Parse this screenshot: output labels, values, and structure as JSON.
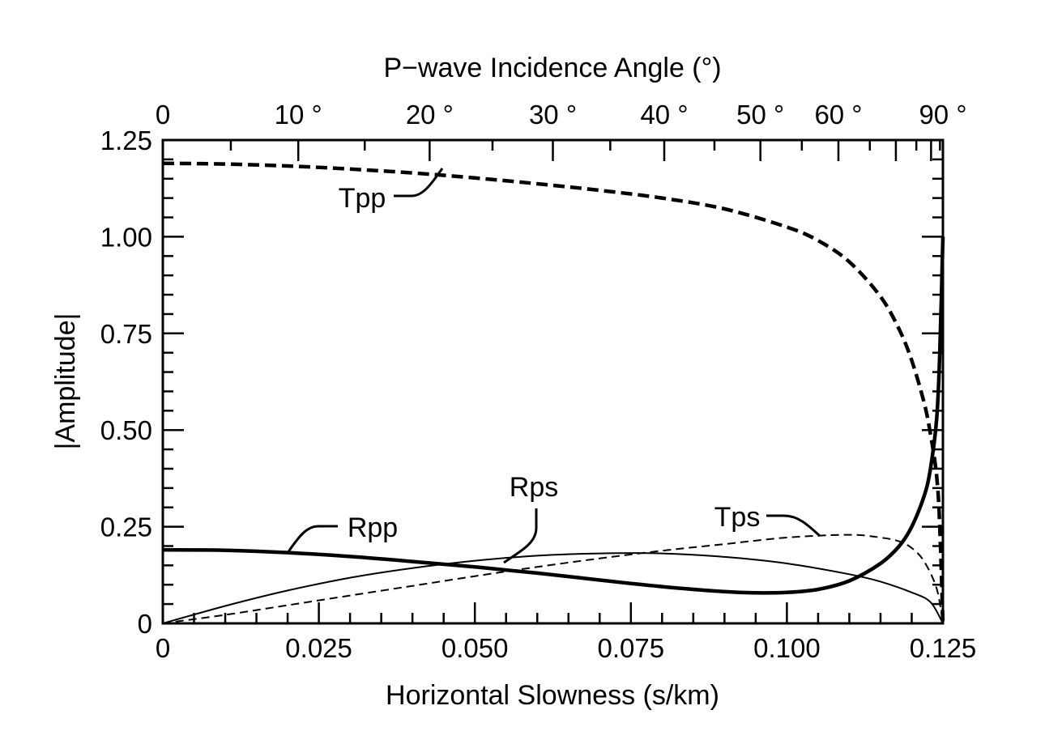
{
  "chart_data": {
    "type": "line",
    "xlabel": "Horizontal Slowness (s/km)",
    "ylabel": "|Amplitude|",
    "top_axis_label": "P−wave Incidence Angle (°)",
    "xlim": [
      0,
      0.125
    ],
    "ylim": [
      0,
      1.25
    ],
    "grid": false,
    "legend": "none",
    "x_ticks": [
      {
        "value": 0,
        "label": "0"
      },
      {
        "value": 0.025,
        "label": "0.025"
      },
      {
        "value": 0.05,
        "label": "0.050"
      },
      {
        "value": 0.075,
        "label": "0.075"
      },
      {
        "value": 0.1,
        "label": "0.100"
      },
      {
        "value": 0.125,
        "label": "0.125"
      }
    ],
    "y_ticks": [
      {
        "value": 0,
        "label": "0"
      },
      {
        "value": 0.25,
        "label": "0.25"
      },
      {
        "value": 0.5,
        "label": "0.50"
      },
      {
        "value": 0.75,
        "label": "0.75"
      },
      {
        "value": 1.0,
        "label": "1.00"
      },
      {
        "value": 1.25,
        "label": "1.25"
      }
    ],
    "top_ticks": [
      {
        "angle": 0,
        "label": "0"
      },
      {
        "angle": 10,
        "label": "10 °"
      },
      {
        "angle": 20,
        "label": "20 °"
      },
      {
        "angle": 30,
        "label": "30 °"
      },
      {
        "angle": 40,
        "label": "40 °"
      },
      {
        "angle": 50,
        "label": "50 °"
      },
      {
        "angle": 60,
        "label": "60 °"
      },
      {
        "angle": 90,
        "label": "90 °"
      }
    ],
    "series": [
      {
        "name": "Tpp",
        "style": "thick-dashed",
        "x": [
          0,
          0.01,
          0.02,
          0.03,
          0.04,
          0.05,
          0.06,
          0.07,
          0.08,
          0.09,
          0.1,
          0.105,
          0.11,
          0.115,
          0.118,
          0.12,
          0.122,
          0.123,
          0.124,
          0.1245,
          0.125
        ],
        "y": [
          1.19,
          1.188,
          1.183,
          1.175,
          1.165,
          1.152,
          1.137,
          1.12,
          1.1,
          1.072,
          1.025,
          0.99,
          0.935,
          0.845,
          0.76,
          0.68,
          0.57,
          0.49,
          0.38,
          0.25,
          0.0
        ]
      },
      {
        "name": "Rpp",
        "style": "thick-solid",
        "x": [
          0,
          0.01,
          0.02,
          0.03,
          0.04,
          0.05,
          0.06,
          0.07,
          0.08,
          0.09,
          0.095,
          0.1,
          0.105,
          0.11,
          0.115,
          0.118,
          0.12,
          0.122,
          0.123,
          0.124,
          0.1245,
          0.125
        ],
        "y": [
          0.19,
          0.189,
          0.183,
          0.173,
          0.16,
          0.146,
          0.13,
          0.112,
          0.095,
          0.082,
          0.079,
          0.08,
          0.088,
          0.11,
          0.155,
          0.2,
          0.25,
          0.33,
          0.4,
          0.53,
          0.7,
          1.0
        ]
      },
      {
        "name": "Rps",
        "style": "thin-solid",
        "x": [
          0,
          0.01,
          0.02,
          0.03,
          0.04,
          0.05,
          0.06,
          0.07,
          0.08,
          0.09,
          0.1,
          0.11,
          0.115,
          0.12,
          0.123,
          0.125
        ],
        "y": [
          0.0,
          0.045,
          0.085,
          0.118,
          0.143,
          0.162,
          0.175,
          0.181,
          0.181,
          0.172,
          0.155,
          0.127,
          0.108,
          0.08,
          0.055,
          0.0
        ]
      },
      {
        "name": "Tps",
        "style": "thin-dashed",
        "x": [
          0,
          0.01,
          0.02,
          0.03,
          0.04,
          0.05,
          0.06,
          0.07,
          0.08,
          0.09,
          0.1,
          0.11,
          0.115,
          0.118,
          0.12,
          0.122,
          0.124,
          0.125
        ],
        "y": [
          0.0,
          0.022,
          0.047,
          0.072,
          0.097,
          0.122,
          0.146,
          0.168,
          0.188,
          0.205,
          0.222,
          0.229,
          0.222,
          0.212,
          0.195,
          0.16,
          0.09,
          0.0
        ]
      }
    ],
    "annotations": [
      {
        "text": "Tpp",
        "series": "Tpp"
      },
      {
        "text": "Rpp",
        "series": "Rpp"
      },
      {
        "text": "Rps",
        "series": "Rps"
      },
      {
        "text": "Tps",
        "series": "Tps"
      }
    ]
  }
}
